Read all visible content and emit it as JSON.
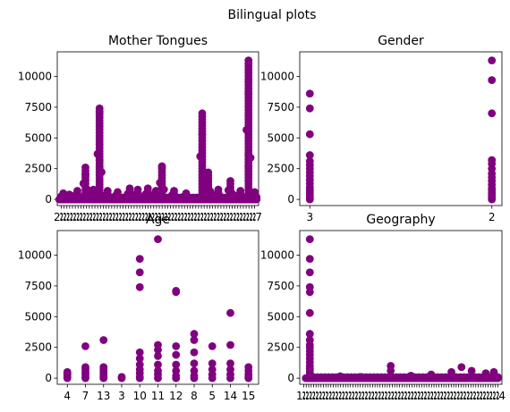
{
  "figure": {
    "suptitle": "Bilingual plots"
  },
  "chart_data": [
    {
      "type": "scatter",
      "title": "Mother Tongues",
      "xlabel": "",
      "ylabel": "",
      "ylim": [
        -500,
        12000
      ],
      "yticks": [
        "0",
        "2500",
        "5000",
        "7500",
        "10000"
      ],
      "xtick_labels_note": "many overlapping categorical tick labels (unreadable)",
      "marker_color": "#800080",
      "clusters": [
        {
          "x": 0.03,
          "ymax": 500
        },
        {
          "x": 0.06,
          "ymax": 400
        },
        {
          "x": 0.1,
          "ymax": 700
        },
        {
          "x": 0.14,
          "ymax": 2600
        },
        {
          "x": 0.18,
          "ymax": 800
        },
        {
          "x": 0.21,
          "ymax": 7400
        },
        {
          "x": 0.25,
          "ymax": 700
        },
        {
          "x": 0.3,
          "ymax": 600
        },
        {
          "x": 0.36,
          "ymax": 900
        },
        {
          "x": 0.4,
          "ymax": 800
        },
        {
          "x": 0.45,
          "ymax": 900
        },
        {
          "x": 0.49,
          "ymax": 700
        },
        {
          "x": 0.52,
          "ymax": 2700
        },
        {
          "x": 0.58,
          "ymax": 700
        },
        {
          "x": 0.64,
          "ymax": 500
        },
        {
          "x": 0.72,
          "ymax": 7000
        },
        {
          "x": 0.75,
          "ymax": 2200
        },
        {
          "x": 0.8,
          "ymax": 800
        },
        {
          "x": 0.86,
          "ymax": 1500
        },
        {
          "x": 0.91,
          "ymax": 700
        },
        {
          "x": 0.95,
          "ymax": 11300
        },
        {
          "x": 0.98,
          "ymax": 600
        }
      ],
      "extra_points": [
        [
          0.21,
          7100
        ],
        [
          0.21,
          3200
        ],
        [
          0.21,
          2600
        ],
        [
          0.72,
          5300
        ],
        [
          0.95,
          9600
        ],
        [
          0.95,
          8600
        ],
        [
          0.95,
          3600
        ],
        [
          0.95,
          2700
        ],
        [
          0.95,
          1500
        ],
        [
          0.52,
          2600
        ],
        [
          0.14,
          2000
        ]
      ]
    },
    {
      "type": "scatter",
      "title": "Gender",
      "xlabel": "",
      "ylabel": "",
      "ylim": [
        -500,
        12000
      ],
      "yticks": [
        "0",
        "2500",
        "5000",
        "7500",
        "10000"
      ],
      "categories": [
        "3",
        "2"
      ],
      "marker_color": "#800080",
      "points": [
        [
          "3",
          8600
        ],
        [
          "3",
          7400
        ],
        [
          "3",
          5300
        ],
        [
          "3",
          3600
        ],
        [
          "3",
          3100
        ],
        [
          "3",
          2800
        ],
        [
          "3",
          2500
        ],
        [
          "3",
          2200
        ],
        [
          "3",
          1900
        ],
        [
          "3",
          1600
        ],
        [
          "3",
          1300
        ],
        [
          "3",
          1000
        ],
        [
          "3",
          800
        ],
        [
          "3",
          600
        ],
        [
          "3",
          400
        ],
        [
          "3",
          250
        ],
        [
          "3",
          100
        ],
        [
          "3",
          0
        ],
        [
          "2",
          11300
        ],
        [
          "2",
          9700
        ],
        [
          "2",
          7000
        ],
        [
          "2",
          3200
        ],
        [
          "2",
          2900
        ],
        [
          "2",
          2500
        ],
        [
          "2",
          2100
        ],
        [
          "2",
          1800
        ],
        [
          "2",
          1500
        ],
        [
          "2",
          1200
        ],
        [
          "2",
          900
        ],
        [
          "2",
          700
        ],
        [
          "2",
          500
        ],
        [
          "2",
          300
        ],
        [
          "2",
          150
        ],
        [
          "2",
          0
        ]
      ]
    },
    {
      "type": "scatter",
      "title": "Age",
      "xlabel": "",
      "ylabel": "",
      "ylim": [
        -500,
        12000
      ],
      "yticks": [
        "0",
        "2500",
        "5000",
        "7500",
        "10000"
      ],
      "categories": [
        "4",
        "7",
        "13",
        "3",
        "10",
        "11",
        "12",
        "8",
        "5",
        "14",
        "15"
      ],
      "marker_color": "#800080",
      "points": [
        [
          "4",
          500
        ],
        [
          "4",
          400
        ],
        [
          "4",
          300
        ],
        [
          "4",
          200
        ],
        [
          "4",
          100
        ],
        [
          "4",
          0
        ],
        [
          "7",
          2600
        ],
        [
          "7",
          900
        ],
        [
          "7",
          700
        ],
        [
          "7",
          500
        ],
        [
          "7",
          300
        ],
        [
          "7",
          100
        ],
        [
          "7",
          0
        ],
        [
          "13",
          3100
        ],
        [
          "13",
          900
        ],
        [
          "13",
          700
        ],
        [
          "13",
          500
        ],
        [
          "13",
          300
        ],
        [
          "13",
          100
        ],
        [
          "13",
          0
        ],
        [
          "3",
          100
        ],
        [
          "3",
          0
        ],
        [
          "10",
          9700
        ],
        [
          "10",
          8600
        ],
        [
          "10",
          7400
        ],
        [
          "10",
          2100
        ],
        [
          "10",
          1600
        ],
        [
          "10",
          1100
        ],
        [
          "10",
          700
        ],
        [
          "10",
          400
        ],
        [
          "10",
          100
        ],
        [
          "10",
          0
        ],
        [
          "11",
          11300
        ],
        [
          "11",
          2700
        ],
        [
          "11",
          2300
        ],
        [
          "11",
          1800
        ],
        [
          "11",
          1100
        ],
        [
          "11",
          600
        ],
        [
          "11",
          300
        ],
        [
          "11",
          0
        ],
        [
          "12",
          7100
        ],
        [
          "12",
          7000
        ],
        [
          "12",
          2600
        ],
        [
          "12",
          1900
        ],
        [
          "12",
          1100
        ],
        [
          "12",
          600
        ],
        [
          "12",
          200
        ],
        [
          "12",
          0
        ],
        [
          "8",
          3600
        ],
        [
          "8",
          3100
        ],
        [
          "8",
          2100
        ],
        [
          "8",
          1200
        ],
        [
          "8",
          600
        ],
        [
          "8",
          200
        ],
        [
          "8",
          0
        ],
        [
          "5",
          2600
        ],
        [
          "5",
          1200
        ],
        [
          "5",
          700
        ],
        [
          "5",
          300
        ],
        [
          "5",
          0
        ],
        [
          "14",
          5300
        ],
        [
          "14",
          2700
        ],
        [
          "14",
          1200
        ],
        [
          "14",
          700
        ],
        [
          "14",
          300
        ],
        [
          "14",
          0
        ],
        [
          "15",
          900
        ],
        [
          "15",
          600
        ],
        [
          "15",
          300
        ],
        [
          "15",
          100
        ],
        [
          "15",
          0
        ]
      ]
    },
    {
      "type": "scatter",
      "title": "Geography",
      "xlabel": "",
      "ylabel": "",
      "ylim": [
        -500,
        12000
      ],
      "yticks": [
        "0",
        "2500",
        "5000",
        "7500",
        "10000"
      ],
      "xtick_labels_note": "many overlapping categorical tick labels (unreadable)",
      "marker_color": "#800080",
      "tall_column": [
        11300,
        9700,
        8600,
        7400,
        7000,
        5300,
        3600,
        3100,
        2700,
        2500,
        2200,
        1900,
        1600,
        1300,
        1000,
        800,
        600,
        400,
        200,
        0
      ],
      "baseline_points": [
        [
          0.2,
          150
        ],
        [
          0.3,
          100
        ],
        [
          0.45,
          1000
        ],
        [
          0.45,
          600
        ],
        [
          0.55,
          200
        ],
        [
          0.65,
          300
        ],
        [
          0.75,
          500
        ],
        [
          0.8,
          900
        ],
        [
          0.85,
          600
        ],
        [
          0.92,
          400
        ],
        [
          0.96,
          500
        ]
      ]
    }
  ],
  "garbled_xticks": {
    "mother_tongues_left": "2",
    "mother_tongues_right": "7",
    "geography_left": "1",
    "geography_right": "4"
  }
}
